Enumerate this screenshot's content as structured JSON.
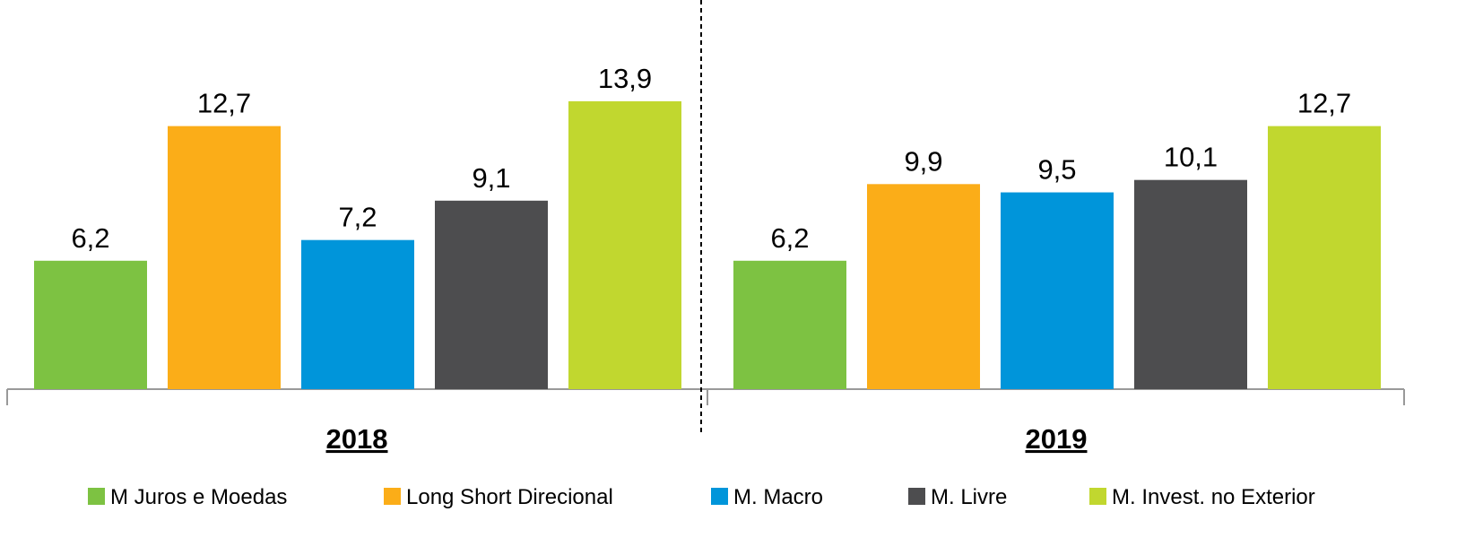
{
  "chart_data": {
    "type": "bar",
    "categories": [
      "2018",
      "2019"
    ],
    "series": [
      {
        "name": "M Juros e Moedas",
        "color": "#7dc242",
        "values": [
          6.2,
          6.2
        ],
        "value_labels": [
          "6,2",
          "6,2"
        ]
      },
      {
        "name": "Long Short Direcional",
        "color": "#fbad18",
        "values": [
          12.7,
          9.9
        ],
        "value_labels": [
          "12,7",
          "9,9"
        ]
      },
      {
        "name": "M. Macro",
        "color": "#0095da",
        "values": [
          7.2,
          9.5
        ],
        "value_labels": [
          "7,2",
          "9,5"
        ]
      },
      {
        "name": "M. Livre",
        "color": "#4d4d4f",
        "values": [
          9.1,
          10.1
        ],
        "value_labels": [
          "9,1",
          "10,1"
        ]
      },
      {
        "name": "M. Invest. no Exterior",
        "color": "#c1d72f",
        "values": [
          13.9,
          12.7
        ],
        "value_labels": [
          "13,9",
          "12,7"
        ]
      }
    ],
    "legend": "bottom"
  }
}
